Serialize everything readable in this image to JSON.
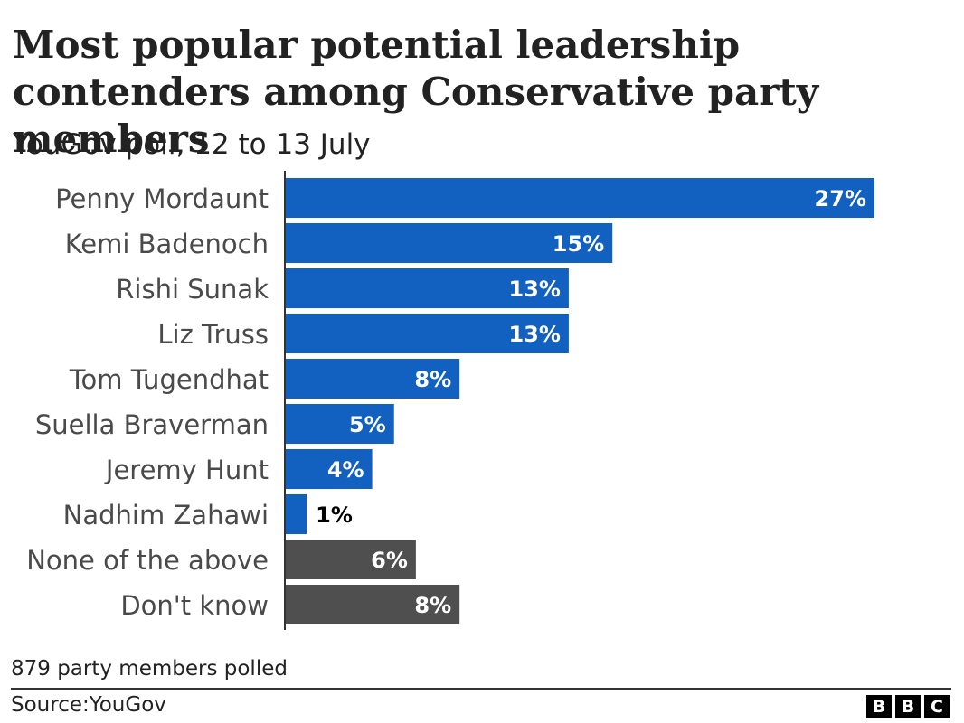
{
  "chart_data": {
    "type": "bar",
    "orientation": "horizontal",
    "title": "Most popular potential leadership contenders among Conservative party members",
    "subtitle": "YouGov poll, 12 to 13 July",
    "categories": [
      "Penny Mordaunt",
      "Kemi Badenoch",
      "Rishi Sunak",
      "Liz Truss",
      "Tom Tugendhat",
      "Suella Braverman",
      "Jeremy Hunt",
      "Nadhim Zahawi",
      "None of the above",
      "Don't know"
    ],
    "values": [
      27,
      15,
      13,
      13,
      8,
      5,
      4,
      1,
      6,
      8
    ],
    "value_labels": [
      "27%",
      "15%",
      "13%",
      "13%",
      "8%",
      "5%",
      "4%",
      "1%",
      "6%",
      "8%"
    ],
    "bar_colors": [
      "#1261c0",
      "#1261c0",
      "#1261c0",
      "#1261c0",
      "#1261c0",
      "#1261c0",
      "#1261c0",
      "#1261c0",
      "#4f4f4f",
      "#4f4f4f"
    ],
    "unit": "%",
    "xlim": [
      0,
      27
    ],
    "grid": false,
    "legend": "none",
    "note": "879 party members polled",
    "source": "Source:YouGov"
  },
  "branding": {
    "logo_letters": [
      "B",
      "B",
      "C"
    ]
  },
  "colors": {
    "candidate_bar": "#1261c0",
    "other_bar": "#4f4f4f",
    "text": "#222222",
    "label_gray": "#4a4a4a"
  }
}
